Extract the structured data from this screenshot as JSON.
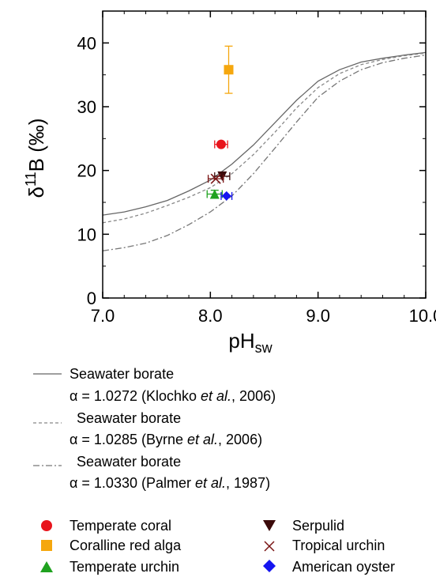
{
  "chart_data": {
    "type": "scatter",
    "xlabel": "pH",
    "xlabel_sub": "sw",
    "ylabel_delta": "δ",
    "ylabel_sup": "11",
    "ylabel_main": "B (‰)",
    "xlim": [
      7.0,
      10.0
    ],
    "ylim": [
      0,
      45
    ],
    "xticks": [
      "7.0",
      "8.0",
      "9.0",
      "10.0"
    ],
    "yticks": [
      "0",
      "10",
      "20",
      "30",
      "40"
    ],
    "grid": false,
    "curves": [
      {
        "style": "solid",
        "color": "#666666",
        "x": [
          7.0,
          7.2,
          7.4,
          7.6,
          7.8,
          8.0,
          8.2,
          8.4,
          8.6,
          8.8,
          9.0,
          9.2,
          9.4,
          9.6,
          9.8,
          10.0
        ],
        "y": [
          13.0,
          13.5,
          14.3,
          15.3,
          16.8,
          18.5,
          21.0,
          24.0,
          27.5,
          31.0,
          34.0,
          35.8,
          37.0,
          37.6,
          38.1,
          38.5
        ]
      },
      {
        "style": "dashed",
        "color": "#888888",
        "x": [
          7.0,
          7.2,
          7.4,
          7.6,
          7.8,
          8.0,
          8.2,
          8.4,
          8.6,
          8.8,
          9.0,
          9.2,
          9.4,
          9.6,
          9.8,
          10.0
        ],
        "y": [
          11.8,
          12.4,
          13.3,
          14.5,
          15.8,
          17.3,
          19.5,
          22.5,
          26.0,
          29.8,
          33.0,
          35.2,
          36.6,
          37.4,
          38.0,
          38.4
        ]
      },
      {
        "style": "dashdot",
        "color": "#777777",
        "x": [
          7.0,
          7.2,
          7.4,
          7.6,
          7.8,
          8.0,
          8.2,
          8.4,
          8.6,
          8.8,
          9.0,
          9.2,
          9.4,
          9.6,
          9.8,
          10.0
        ],
        "y": [
          7.4,
          7.9,
          8.6,
          9.8,
          11.5,
          13.5,
          16.0,
          19.5,
          23.5,
          27.6,
          31.5,
          34.0,
          35.8,
          36.9,
          37.6,
          38.1
        ]
      }
    ],
    "points": [
      {
        "name": "Temperate coral",
        "marker": "circle",
        "color": "#e8141c",
        "x": 8.1,
        "y": 24.1,
        "xerr": 0.06,
        "yerr": 0
      },
      {
        "name": "Coralline red alga",
        "marker": "square",
        "color": "#f5a70e",
        "x": 8.17,
        "y": 35.8,
        "xerr": 0,
        "yerr": 3.7
      },
      {
        "name": "Temperate urchin",
        "marker": "triangle-up",
        "color": "#1fa21f",
        "x": 8.04,
        "y": 16.3,
        "xerr": 0.07,
        "yerr": 0.6
      },
      {
        "name": "Serpulid",
        "marker": "triangle-down",
        "color": "#3b0a0a",
        "x": 8.11,
        "y": 19.1,
        "xerr": 0.07,
        "yerr": 0
      },
      {
        "name": "Tropical urchin",
        "marker": "x",
        "color": "#7a1414",
        "x": 8.05,
        "y": 18.7,
        "xerr": 0.07,
        "yerr": 0
      },
      {
        "name": "American oyster",
        "marker": "diamond",
        "color": "#1515f0",
        "x": 8.15,
        "y": 16.0,
        "xerr": 0.05,
        "yerr": 0
      }
    ]
  },
  "legend": {
    "lines": [
      {
        "style": "solid",
        "title": "Seawater borate",
        "alpha_prefix": "α = 1.0272 (Klochko ",
        "etal": "et al.",
        "suffix": ", 2006)"
      },
      {
        "style": "dashed",
        "title": "Seawater borate",
        "alpha_prefix": "α = 1.0285 (Byrne ",
        "etal": "et al.",
        "suffix": ", 2006)"
      },
      {
        "style": "dashdot",
        "title": "Seawater borate",
        "alpha_prefix": "α = 1.0330 (Palmer ",
        "etal": "et al.",
        "suffix": ", 1987)"
      }
    ],
    "markers_left": [
      "Temperate coral",
      "Coralline red alga",
      "Temperate urchin"
    ],
    "markers_right": [
      "Serpulid",
      "Tropical urchin",
      "American oyster"
    ]
  }
}
